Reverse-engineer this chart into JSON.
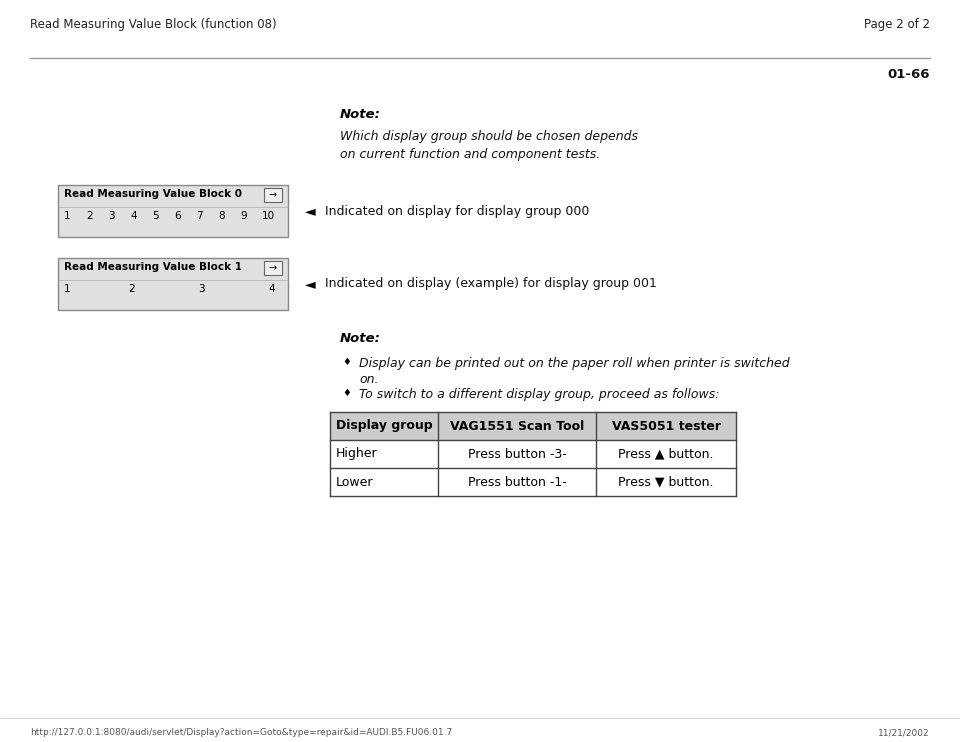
{
  "header_left": "Read Measuring Value Block (function 08)",
  "header_right": "Page 2 of 2",
  "page_num": "01-66",
  "note_bold": "Note:",
  "note_text_line1": "Which display group should be chosen depends",
  "note_text_line2": "on current function and component tests.",
  "block0_label": "Read Measuring Value Block 0",
  "block0_numbers": [
    "1",
    "2",
    "3",
    "4",
    "5",
    "6",
    "7",
    "8",
    "9",
    "10"
  ],
  "block0_indicated": "Indicated on display for display group 000",
  "block1_label": "Read Measuring Value Block 1",
  "block1_numbers": [
    "1",
    "2",
    "3",
    "4"
  ],
  "block1_indicated": "Indicated on display (example) for display group 001",
  "note2_bold": "Note:",
  "bullet1_line1": "Display can be printed out on the paper roll when printer is switched",
  "bullet1_line2": "on.",
  "bullet2": "To switch to a different display group, proceed as follows:",
  "table_headers": [
    "Display group",
    "VAG1551 Scan Tool",
    "VAS5051 tester"
  ],
  "table_row1": [
    "Higher",
    "Press button -3-",
    "Press ▲ button."
  ],
  "table_row2": [
    "Lower",
    "Press button -1-",
    "Press ▼ button."
  ],
  "footer_url": "http://127.0.0.1:8080/audi/servlet/Display?action=Goto&type=repair&id=AUDI.B5.FU06.01.7",
  "footer_date": "11/21/2002",
  "bg_color": "#ffffff",
  "header_line_color": "#999999",
  "box_bg_color": "#e0e0e0",
  "table_border_color": "#444444",
  "table_header_bg": "#cccccc"
}
